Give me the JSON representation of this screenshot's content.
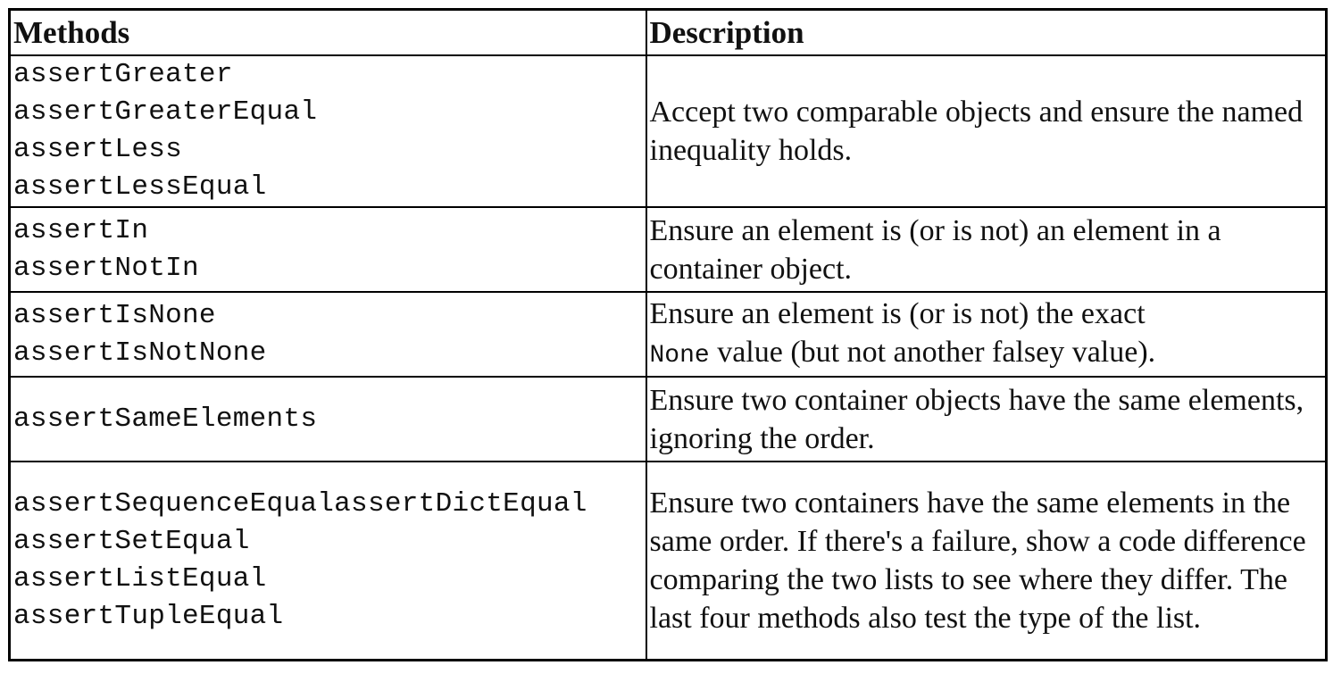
{
  "table": {
    "headers": {
      "methods": "Methods",
      "description": "Description"
    },
    "rows": [
      {
        "methods": [
          "assertGreater",
          "assertGreaterEqual",
          "assertLess",
          "assertLessEqual"
        ],
        "description": "Accept two comparable objects and ensure the named inequality holds."
      },
      {
        "methods": [
          "assertIn",
          "assertNotIn"
        ],
        "description": "Ensure an element is (or is not) an element in a container object."
      },
      {
        "methods": [
          "assertIsNone",
          "assertIsNotNone"
        ],
        "description_prefix": "Ensure an element is (or is not) the exact",
        "description_code": "None",
        "description_suffix": "value (but not another falsey value)."
      },
      {
        "methods": [
          "assertSameElements"
        ],
        "description": "Ensure two container objects have the same elements, ignoring the order."
      },
      {
        "methods": [
          "assertSequenceEqualassertDictEqual",
          "assertSetEqual",
          "assertListEqual",
          "assertTupleEqual"
        ],
        "description": "Ensure two containers have the same elements in the same order. If there's a failure, show a code difference comparing the two lists to see where they differ. The last four methods also test the type of the list."
      }
    ]
  }
}
